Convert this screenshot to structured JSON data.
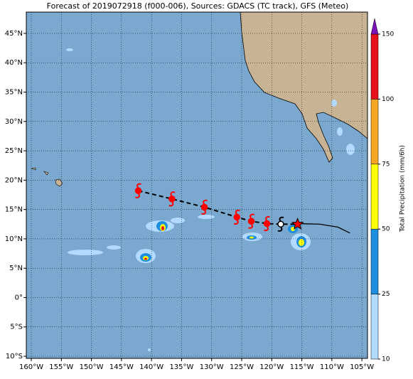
{
  "chart_data": {
    "type": "map",
    "title": "Forecast of 2019072918 (f000-006), Sources: GDACS (TC track), GFS (Meteo)",
    "xlim": [
      -160.83,
      -104.07
    ],
    "ylim": [
      -10.36,
      48.63
    ],
    "xticks": [
      {
        "value": -160,
        "label": "160°W"
      },
      {
        "value": -155,
        "label": "155°W"
      },
      {
        "value": -150,
        "label": "150°W"
      },
      {
        "value": -145,
        "label": "145°W"
      },
      {
        "value": -140,
        "label": "140°W"
      },
      {
        "value": -135,
        "label": "135°W"
      },
      {
        "value": -130,
        "label": "130°W"
      },
      {
        "value": -125,
        "label": "125°W"
      },
      {
        "value": -120,
        "label": "120°W"
      },
      {
        "value": -115,
        "label": "115°W"
      },
      {
        "value": -110,
        "label": "110°W"
      },
      {
        "value": -105,
        "label": "105°W"
      }
    ],
    "yticks": [
      {
        "value": -10,
        "label": "10°S"
      },
      {
        "value": -5,
        "label": "5°S"
      },
      {
        "value": 0,
        "label": "0°"
      },
      {
        "value": 5,
        "label": "5°N"
      },
      {
        "value": 10,
        "label": "10°N"
      },
      {
        "value": 15,
        "label": "15°N"
      },
      {
        "value": 20,
        "label": "20°N"
      },
      {
        "value": 25,
        "label": "25°N"
      },
      {
        "value": 30,
        "label": "30°N"
      },
      {
        "value": 35,
        "label": "35°N"
      },
      {
        "value": 40,
        "label": "40°N"
      },
      {
        "value": 45,
        "label": "45°N"
      }
    ],
    "grid": true,
    "forecast_track": {
      "color": "#ff0000",
      "lon": [
        -142.2,
        -136.6,
        -131.2,
        -125.8,
        -123.4,
        -120.8
      ],
      "lat": [
        18.2,
        16.8,
        15.4,
        13.7,
        13.0,
        12.6
      ]
    },
    "past_position": {
      "lon": -118.5,
      "lat": 12.5
    },
    "current_position": {
      "lon": -115.7,
      "lat": 12.5,
      "color": "#ff0000"
    },
    "observed_track": {
      "lon": [
        -115.7,
        -112.0,
        -109.0,
        -107.0
      ],
      "lat": [
        12.6,
        12.5,
        12.0,
        11.0
      ]
    },
    "colorbar": {
      "label": "Total Precipitation (mm/6h)",
      "ticks": [
        10,
        25,
        50,
        75,
        100,
        150
      ],
      "colors": [
        "#b3dbff",
        "#1e8ee0",
        "#ffff00",
        "#f5a623",
        "#e8101a"
      ],
      "extend_color": "#7b10b8"
    }
  }
}
